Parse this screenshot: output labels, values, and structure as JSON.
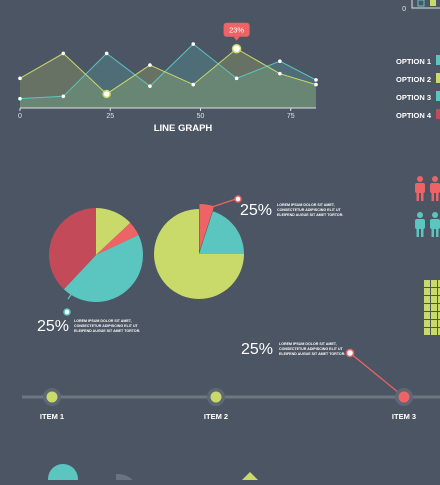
{
  "colors": {
    "background": "#4c5563",
    "teal": "#5bc6c0",
    "lime": "#c9d96a",
    "coral": "#ee6466",
    "red": "#c34a58",
    "axis": "#dfe3e7",
    "text": "#ffffff",
    "muted": "#3e4652"
  },
  "chart_data": [
    {
      "type": "area",
      "title": "LINE GRAPH",
      "xlim": [
        0,
        82
      ],
      "ylim": [
        0,
        100
      ],
      "x_ticks": [
        0,
        25,
        50,
        75
      ],
      "grid": false,
      "series": [
        {
          "color": "#5bc6c0",
          "x": [
            0,
            12,
            24,
            36,
            48,
            60,
            72,
            82
          ],
          "y": [
            12,
            15,
            70,
            28,
            82,
            38,
            60,
            36
          ]
        },
        {
          "color": "#c9d96a",
          "x": [
            0,
            12,
            24,
            36,
            48,
            60,
            72,
            82
          ],
          "y": [
            38,
            70,
            18,
            55,
            30,
            76,
            44,
            30
          ]
        }
      ],
      "callout": {
        "x": 60,
        "y": 76,
        "label": "23%"
      }
    },
    {
      "type": "pie",
      "slices": [
        {
          "value": 13,
          "color": "#c9d96a"
        },
        {
          "value": 5,
          "color": "#ee6466"
        },
        {
          "value": 44,
          "color": "#5bc6c0"
        },
        {
          "value": 38,
          "color": "#c34a58"
        }
      ],
      "annotation": {
        "percent": "25%",
        "text": [
          "LOREM IPSUM DOLOR SIT AMET,",
          "CONSECTETUR ADIPISCING ELIT UT",
          "ELEIFEND AUGUE SIT AMET TORTOR."
        ]
      }
    },
    {
      "type": "pie",
      "slices": [
        {
          "value": 5,
          "color": "#ee6466"
        },
        {
          "value": 20,
          "color": "#5bc6c0"
        },
        {
          "value": 75,
          "color": "#c9d96a"
        }
      ],
      "annotation": {
        "percent": "25%",
        "text": [
          "LOREM IPSUM DOLOR SIT AMET,",
          "CONSECTETUR ADIPISCING ELIT UT",
          "ELEIFEND AUGUE SIT AMET TORTOR."
        ]
      }
    }
  ],
  "legend": {
    "items": [
      {
        "label": "OPTION 1",
        "color": "#5bc6c0"
      },
      {
        "label": "OPTION 2",
        "color": "#c9d96a"
      },
      {
        "label": "OPTION 3",
        "color": "#5bc6c0"
      },
      {
        "label": "OPTION 4",
        "color": "#c34a58"
      }
    ]
  },
  "corner_chart": {
    "zero_label": "0"
  },
  "timeline": {
    "items": [
      {
        "label": "ITEM 1",
        "color": "#c9d96a"
      },
      {
        "label": "ITEM 2",
        "color": "#c9d96a"
      },
      {
        "label": "ITEM 3",
        "color": "#ee6466"
      }
    ],
    "annotation": {
      "percent": "25%",
      "text": [
        "LOREM IPSUM DOLOR SIT AMET,",
        "CONSECTETUR ADIPISCING ELIT UT",
        "ELEIFEND AUGUE SIT AMET TORTOR."
      ]
    }
  },
  "people_icons": {
    "rows": [
      {
        "color": "#ee6466"
      },
      {
        "color": "#5bc6c0"
      }
    ]
  }
}
